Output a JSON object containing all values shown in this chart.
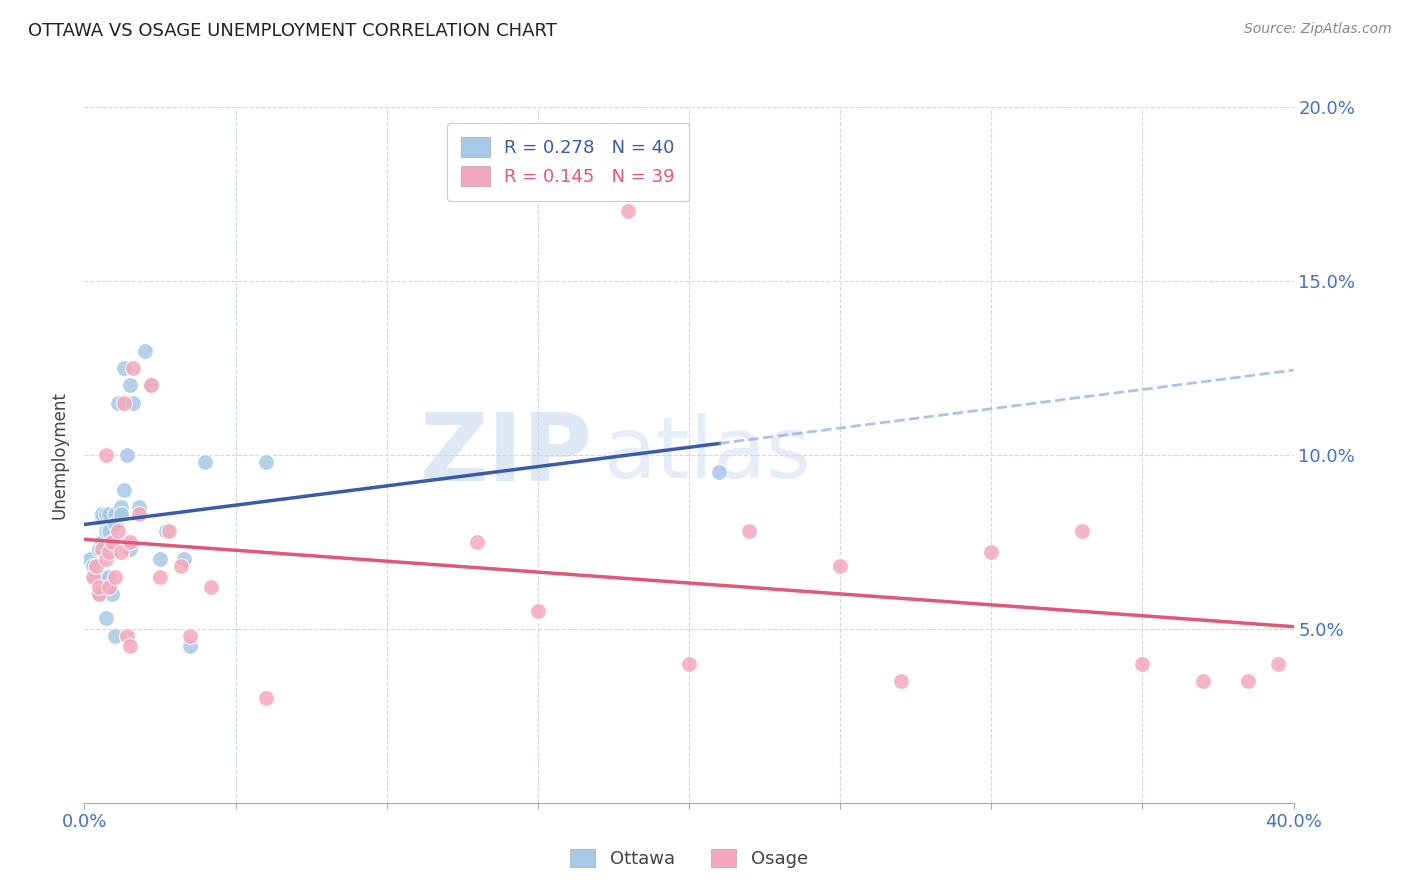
{
  "title": "OTTAWA VS OSAGE UNEMPLOYMENT CORRELATION CHART",
  "source": "Source: ZipAtlas.com",
  "ylabel": "Unemployment",
  "xlim": [
    0,
    0.4
  ],
  "ylim": [
    0,
    0.2
  ],
  "legend_ottawa": "Ottawa",
  "legend_osage": "Osage",
  "R_ottawa": "0.278",
  "N_ottawa": "40",
  "R_osage": "0.145",
  "N_osage": "39",
  "color_ottawa": "#a8c8e8",
  "color_osage": "#f4a8bc",
  "color_ottawa_line": "#3a5aaa",
  "color_osage_line": "#e05878",
  "color_ottawa_dash": "#8aabdc",
  "watermark_zip": "ZIP",
  "watermark_atlas": "atlas",
  "ottawa_x": [
    0.002,
    0.003,
    0.004,
    0.005,
    0.005,
    0.006,
    0.006,
    0.006,
    0.006,
    0.007,
    0.007,
    0.007,
    0.007,
    0.008,
    0.008,
    0.008,
    0.009,
    0.009,
    0.01,
    0.01,
    0.01,
    0.011,
    0.012,
    0.012,
    0.013,
    0.013,
    0.014,
    0.015,
    0.015,
    0.016,
    0.018,
    0.02,
    0.022,
    0.025,
    0.027,
    0.033,
    0.035,
    0.04,
    0.06,
    0.21
  ],
  "ottawa_y": [
    0.07,
    0.068,
    0.065,
    0.073,
    0.06,
    0.082,
    0.075,
    0.083,
    0.065,
    0.083,
    0.078,
    0.062,
    0.053,
    0.083,
    0.078,
    0.065,
    0.075,
    0.06,
    0.083,
    0.08,
    0.048,
    0.115,
    0.085,
    0.083,
    0.09,
    0.125,
    0.1,
    0.12,
    0.073,
    0.115,
    0.085,
    0.13,
    0.12,
    0.07,
    0.078,
    0.07,
    0.045,
    0.098,
    0.098,
    0.095
  ],
  "osage_x": [
    0.003,
    0.004,
    0.005,
    0.005,
    0.006,
    0.007,
    0.007,
    0.008,
    0.008,
    0.009,
    0.01,
    0.011,
    0.012,
    0.013,
    0.014,
    0.015,
    0.015,
    0.016,
    0.018,
    0.022,
    0.025,
    0.028,
    0.032,
    0.035,
    0.042,
    0.06,
    0.13,
    0.15,
    0.18,
    0.2,
    0.22,
    0.25,
    0.27,
    0.3,
    0.33,
    0.35,
    0.37,
    0.385,
    0.395
  ],
  "osage_y": [
    0.065,
    0.068,
    0.06,
    0.062,
    0.073,
    0.07,
    0.1,
    0.072,
    0.062,
    0.075,
    0.065,
    0.078,
    0.072,
    0.115,
    0.048,
    0.045,
    0.075,
    0.125,
    0.083,
    0.12,
    0.065,
    0.078,
    0.068,
    0.048,
    0.062,
    0.03,
    0.075,
    0.055,
    0.17,
    0.04,
    0.078,
    0.068,
    0.035,
    0.072,
    0.078,
    0.04,
    0.035,
    0.035,
    0.04
  ]
}
